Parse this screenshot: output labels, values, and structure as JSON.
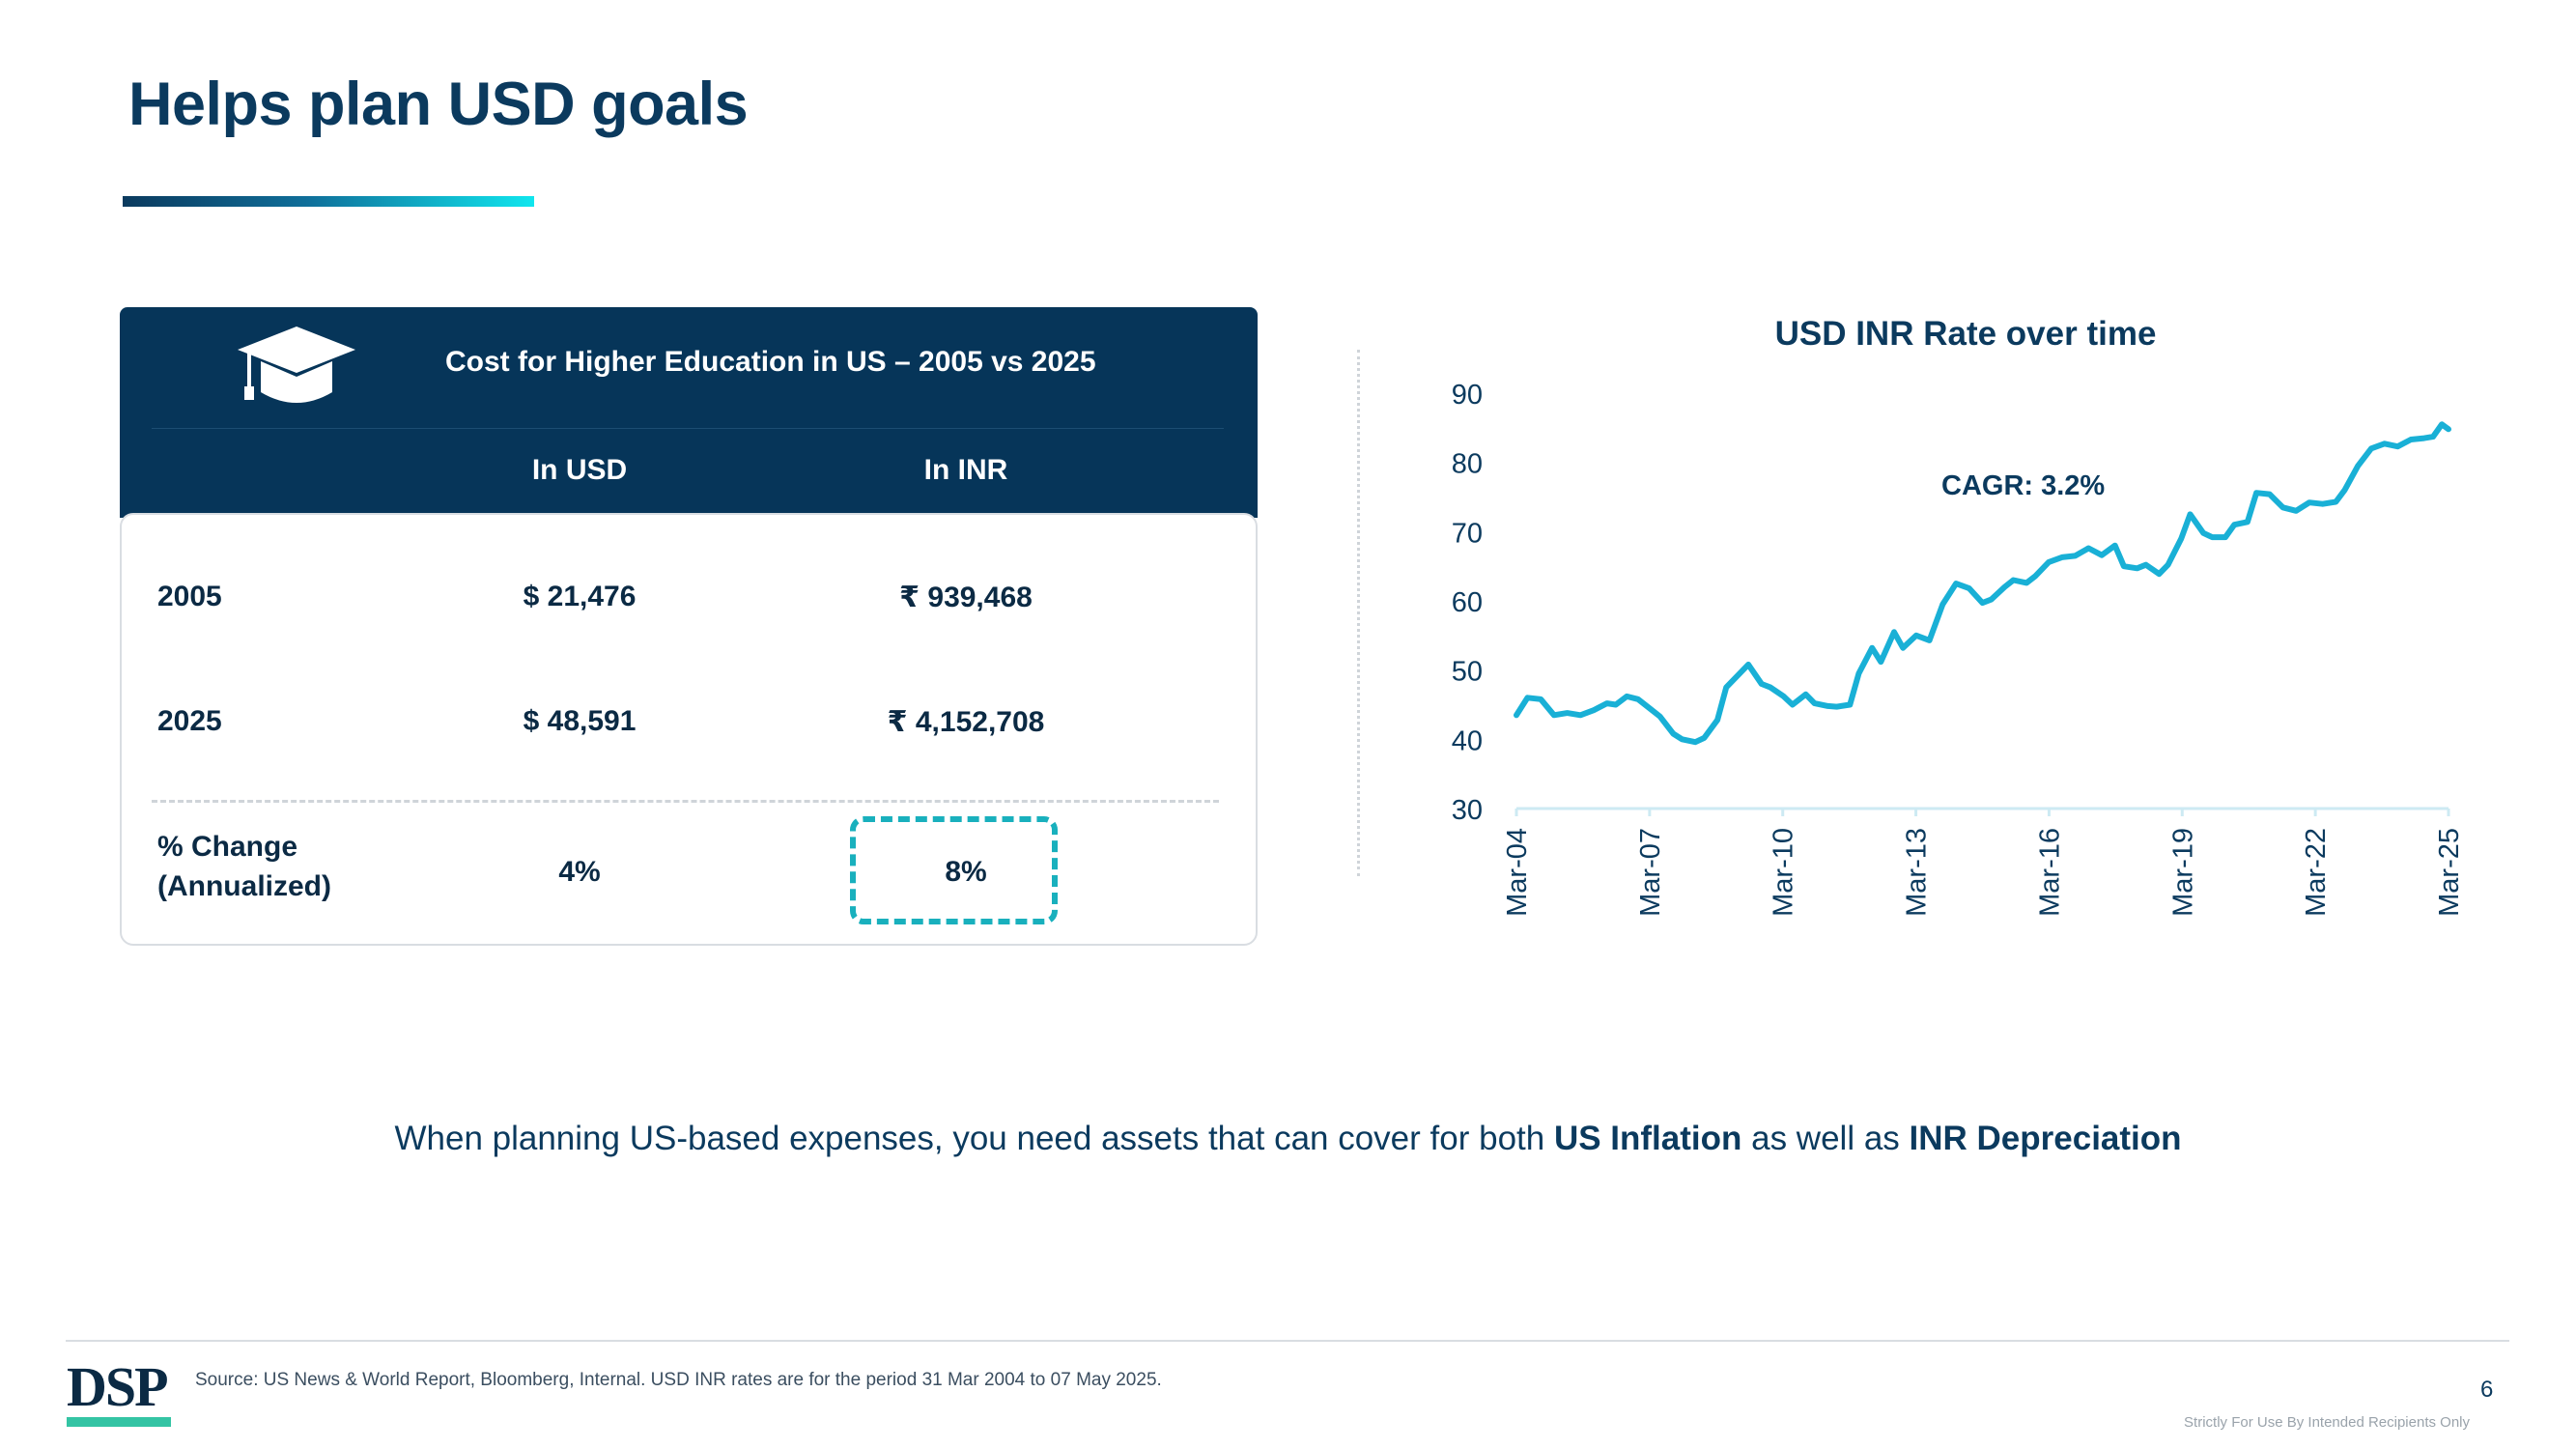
{
  "page": {
    "title": "Helps plan USD goals",
    "page_number": "6",
    "source": "Source: US News & World Report, Bloomberg, Internal. USD INR rates are for the period 31 Mar 2004 to 07 May 2025.",
    "confidential": "Strictly For Use By Intended Recipients Only",
    "logo_text": "DSP"
  },
  "table": {
    "title": "Cost for Higher Education in US – 2005 vs 2025",
    "icon": "graduation-cap-icon",
    "columns": [
      "In USD",
      "In INR"
    ],
    "rows": [
      {
        "label": "2005",
        "usd": "$ 21,476",
        "inr": "₹ 939,468"
      },
      {
        "label": "2025",
        "usd": "$ 48,591",
        "inr": "₹ 4,152,708"
      },
      {
        "label": "% Change (Annualized)",
        "usd": "4%",
        "inr": "8%"
      }
    ]
  },
  "bottom_note": {
    "prefix": "When planning US-based expenses, you need assets that can cover for both ",
    "bold1": "US Inflation",
    "middle": " as well as ",
    "bold2": "INR Depreciation"
  },
  "chart_data": {
    "type": "line",
    "title": "USD INR Rate over time",
    "annotation": "CAGR: 3.2%",
    "color": "#19b0d6",
    "ylim": [
      30,
      90
    ],
    "yticks": [
      30,
      40,
      50,
      60,
      70,
      80,
      90
    ],
    "xticks": [
      "Mar-04",
      "Mar-07",
      "Mar-10",
      "Mar-13",
      "Mar-16",
      "Mar-19",
      "Mar-22",
      "Mar-25"
    ],
    "x_start": 2004.25,
    "x_end": 2025.35,
    "series": [
      {
        "x": [
          2004.25,
          2004.5,
          2004.8,
          2005.1,
          2005.4,
          2005.7,
          2006.0,
          2006.3,
          2006.5,
          2006.75,
          2007.0,
          2007.3,
          2007.5,
          2007.8,
          2008.0,
          2008.3,
          2008.5,
          2008.8,
          2009.0,
          2009.3,
          2009.5,
          2009.8,
          2010.0,
          2010.3,
          2010.5,
          2010.8,
          2011.0,
          2011.3,
          2011.5,
          2011.8,
          2012.0,
          2012.3,
          2012.5,
          2012.8,
          2013.0,
          2013.3,
          2013.6,
          2013.9,
          2014.2,
          2014.5,
          2014.8,
          2015.0,
          2015.3,
          2015.5,
          2015.8,
          2016.0,
          2016.3,
          2016.6,
          2016.9,
          2017.2,
          2017.5,
          2017.8,
          2018.0,
          2018.3,
          2018.5,
          2018.8,
          2019.0,
          2019.3,
          2019.5,
          2019.8,
          2020.0,
          2020.3,
          2020.5,
          2020.8,
          2021.0,
          2021.3,
          2021.6,
          2021.9,
          2022.2,
          2022.5,
          2022.8,
          2023.0,
          2023.3,
          2023.6,
          2023.9,
          2024.2,
          2024.5,
          2024.8,
          2025.0,
          2025.2,
          2025.35
        ],
        "values": [
          43.5,
          46,
          45.8,
          43.5,
          43.8,
          43.5,
          44.2,
          45.2,
          45.0,
          46.2,
          45.8,
          44.3,
          43.3,
          40.8,
          40.0,
          39.6,
          40.2,
          42.8,
          47.5,
          49.5,
          50.8,
          48,
          47.5,
          46.2,
          45,
          46.5,
          45.2,
          44.8,
          44.7,
          45,
          49.5,
          53.2,
          51.2,
          55.5,
          53.2,
          55,
          54.3,
          59.5,
          62.5,
          61.8,
          59.7,
          60.2,
          62,
          63,
          62.6,
          63.6,
          65.6,
          66.3,
          66.5,
          67.6,
          66.6,
          68,
          65,
          64.7,
          65.2,
          63.9,
          65.2,
          69,
          72.5,
          69.8,
          69.2,
          69.2,
          71,
          71.4,
          75.6,
          75.4,
          73.5,
          73,
          74.2,
          74,
          74.3,
          76,
          79.5,
          82,
          82.7,
          82.3,
          83.3,
          83.5,
          83.7,
          85.5,
          84.8
        ]
      }
    ]
  }
}
